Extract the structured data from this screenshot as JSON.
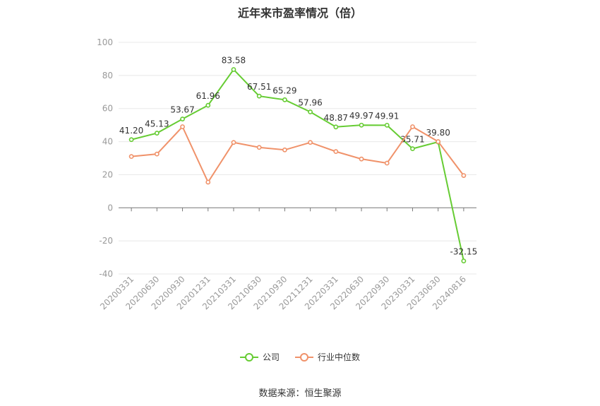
{
  "title": "近年来市盈率情况（倍）",
  "source": "数据来源：恒生聚源",
  "colors": {
    "company": "#66cc33",
    "industry": "#f0926a",
    "grid": "#e8e8e8",
    "axis": "#999999",
    "label": "#333333"
  },
  "legend": {
    "company": "公司",
    "industry": "行业中位数"
  },
  "chart_data": {
    "type": "line",
    "title": "近年来市盈率情况（倍）",
    "categories": [
      "20200331",
      "20200630",
      "20200930",
      "20201231",
      "20210331",
      "20210630",
      "20210930",
      "20211231",
      "20220331",
      "20220630",
      "20220930",
      "20230331",
      "20230630",
      "20240816"
    ],
    "series": [
      {
        "name": "公司",
        "values": [
          41.2,
          45.13,
          53.67,
          61.96,
          83.58,
          67.51,
          65.29,
          57.96,
          48.87,
          49.97,
          49.91,
          35.71,
          39.8,
          -32.15
        ],
        "labels": [
          "41.20",
          "45.13",
          "53.67",
          "61.96",
          "83.58",
          "67.51",
          "65.29",
          "57.96",
          "48.87",
          "49.97",
          "49.91",
          "35.71",
          "39.80",
          "-32.15"
        ]
      },
      {
        "name": "行业中位数",
        "values": [
          31,
          32.5,
          49,
          15.5,
          39.5,
          36.5,
          35,
          39.5,
          34,
          29.5,
          27,
          49,
          40,
          19.5
        ]
      }
    ],
    "ylim": [
      -40,
      100
    ],
    "yticks": [
      -40,
      -20,
      0,
      20,
      40,
      60,
      80,
      100
    ],
    "grid": true,
    "legend_position": "bottom"
  }
}
